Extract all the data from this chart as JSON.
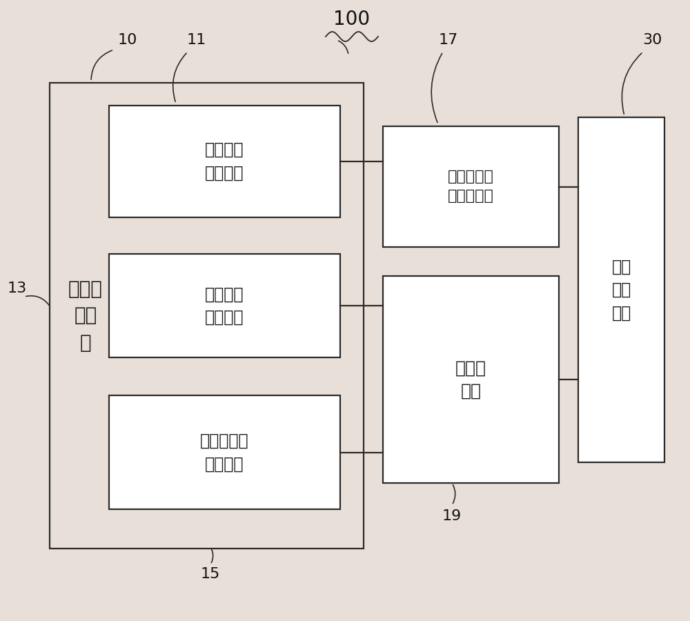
{
  "bg_color": "#e8e0d8",
  "line_color": "#2a2a2a",
  "box_fill": "#ffffff",
  "num_100": "100",
  "num_10": "10",
  "num_11": "11",
  "num_13": "13",
  "num_15": "15",
  "num_17": "17",
  "num_19": "19",
  "num_30": "30",
  "text_outer": "信号采\n集模\n块",
  "text_11": "超声图像\n采集单元",
  "text_13": "生理信号\n采集单元",
  "text_15": "运动学信号\n采集单元",
  "text_17": "视频采集卡\n或数据接口",
  "text_19": "数据采\n集卡",
  "text_30": "信号\n处理\n单元"
}
